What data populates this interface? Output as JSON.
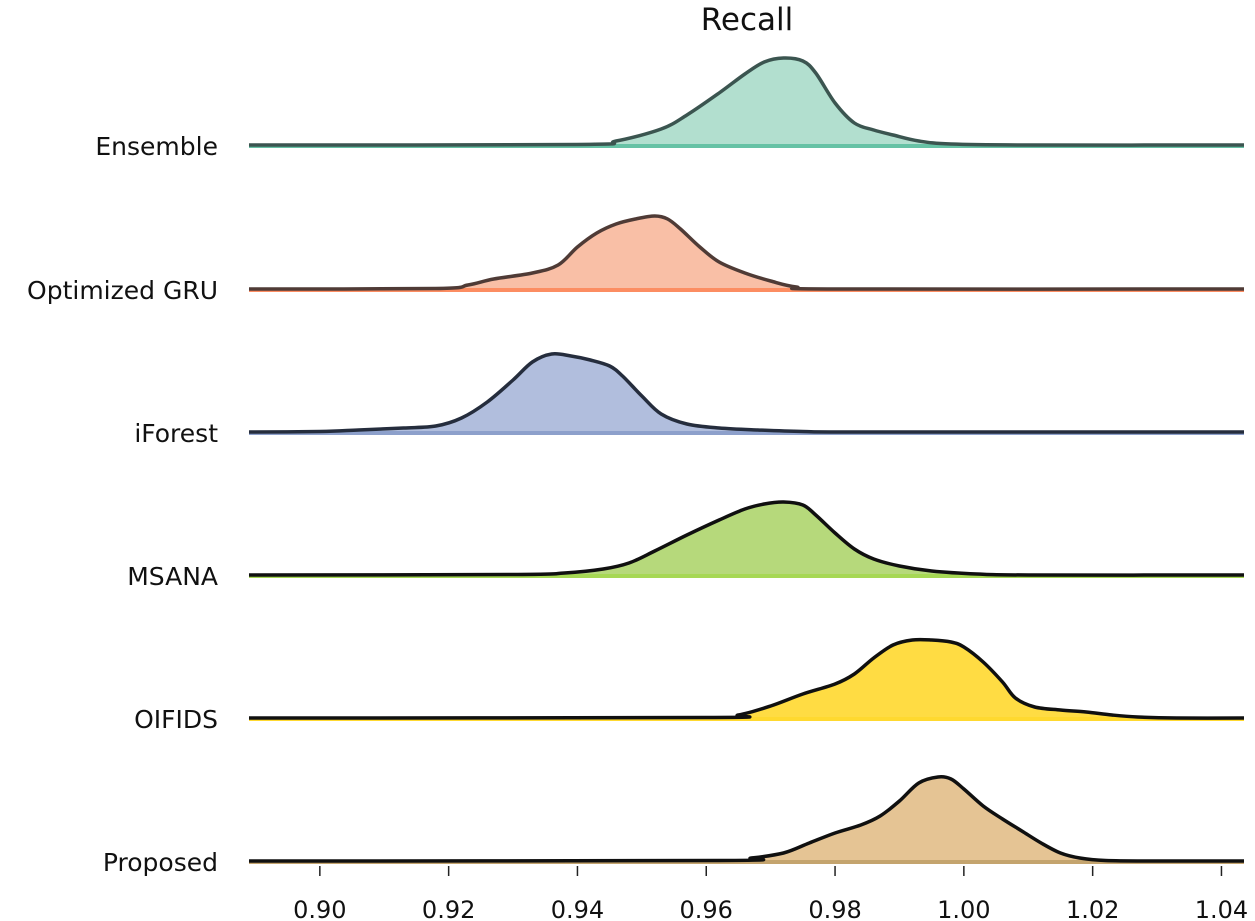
{
  "chart_data": {
    "type": "ridgeline",
    "title": "Recall",
    "xlabel": "",
    "ylabel": "",
    "xlim": [
      0.889,
      1.0435
    ],
    "x_ticks": [
      {
        "value": 0.9,
        "label": "0.90"
      },
      {
        "value": 0.92,
        "label": "0.92"
      },
      {
        "value": 0.94,
        "label": "0.94"
      },
      {
        "value": 0.96,
        "label": "0.96"
      },
      {
        "value": 0.98,
        "label": "0.98"
      },
      {
        "value": 1.0,
        "label": "1.00"
      },
      {
        "value": 1.02,
        "label": "1.02"
      },
      {
        "value": 1.04,
        "label": "1.04"
      }
    ],
    "grid": false,
    "series": [
      {
        "name": "Ensemble",
        "fill": "#b2dfcf",
        "base": "#66c2a5",
        "stroke": "#3b5550",
        "points": [
          [
            0.889,
            0
          ],
          [
            0.94,
            0.005
          ],
          [
            0.946,
            0.04
          ],
          [
            0.953,
            0.16
          ],
          [
            0.957,
            0.3
          ],
          [
            0.962,
            0.52
          ],
          [
            0.966,
            0.71
          ],
          [
            0.969,
            0.83
          ],
          [
            0.972,
            0.87
          ],
          [
            0.975,
            0.84
          ],
          [
            0.977,
            0.72
          ],
          [
            0.98,
            0.42
          ],
          [
            0.983,
            0.22
          ],
          [
            0.986,
            0.15
          ],
          [
            0.989,
            0.1
          ],
          [
            0.993,
            0.04
          ],
          [
            0.998,
            0.01
          ],
          [
            1.01,
            0
          ],
          [
            1.0435,
            0
          ]
        ]
      },
      {
        "name": "Optimized GRU",
        "fill": "#f9bfa6",
        "base": "#fc8d62",
        "stroke": "#4f3b36",
        "points": [
          [
            0.889,
            0
          ],
          [
            0.918,
            0.005
          ],
          [
            0.923,
            0.04
          ],
          [
            0.927,
            0.1
          ],
          [
            0.933,
            0.16
          ],
          [
            0.937,
            0.24
          ],
          [
            0.94,
            0.42
          ],
          [
            0.943,
            0.56
          ],
          [
            0.946,
            0.65
          ],
          [
            0.949,
            0.7
          ],
          [
            0.952,
            0.73
          ],
          [
            0.954,
            0.7
          ],
          [
            0.956,
            0.6
          ],
          [
            0.959,
            0.42
          ],
          [
            0.962,
            0.27
          ],
          [
            0.966,
            0.16
          ],
          [
            0.97,
            0.08
          ],
          [
            0.974,
            0.02
          ],
          [
            0.98,
            0
          ],
          [
            1.0435,
            0
          ]
        ]
      },
      {
        "name": "iForest",
        "fill": "#b1bedd",
        "base": "#8da0cb",
        "stroke": "#252d3d",
        "points": [
          [
            0.889,
            0
          ],
          [
            0.9,
            0.005
          ],
          [
            0.906,
            0.02
          ],
          [
            0.913,
            0.04
          ],
          [
            0.918,
            0.06
          ],
          [
            0.922,
            0.14
          ],
          [
            0.926,
            0.3
          ],
          [
            0.93,
            0.52
          ],
          [
            0.933,
            0.7
          ],
          [
            0.936,
            0.78
          ],
          [
            0.939,
            0.76
          ],
          [
            0.942,
            0.72
          ],
          [
            0.945,
            0.66
          ],
          [
            0.947,
            0.56
          ],
          [
            0.95,
            0.36
          ],
          [
            0.953,
            0.18
          ],
          [
            0.957,
            0.08
          ],
          [
            0.962,
            0.04
          ],
          [
            0.968,
            0.02
          ],
          [
            0.975,
            0.005
          ],
          [
            0.985,
            0
          ],
          [
            1.0435,
            0
          ]
        ]
      },
      {
        "name": "MSANA",
        "fill": "#b6d97b",
        "base": "#a6d854",
        "stroke": "#101010",
        "points": [
          [
            0.889,
            0
          ],
          [
            0.93,
            0.005
          ],
          [
            0.938,
            0.02
          ],
          [
            0.944,
            0.06
          ],
          [
            0.948,
            0.12
          ],
          [
            0.952,
            0.24
          ],
          [
            0.957,
            0.4
          ],
          [
            0.962,
            0.55
          ],
          [
            0.966,
            0.66
          ],
          [
            0.969,
            0.71
          ],
          [
            0.972,
            0.73
          ],
          [
            0.975,
            0.7
          ],
          [
            0.977,
            0.6
          ],
          [
            0.98,
            0.42
          ],
          [
            0.983,
            0.26
          ],
          [
            0.986,
            0.16
          ],
          [
            0.99,
            0.09
          ],
          [
            0.995,
            0.04
          ],
          [
            1.002,
            0.01
          ],
          [
            1.01,
            0
          ],
          [
            1.0435,
            0
          ]
        ]
      },
      {
        "name": "OIFIDS",
        "fill": "#ffdc43",
        "base": "#ffd92f",
        "stroke": "#101010",
        "points": [
          [
            0.889,
            0
          ],
          [
            0.96,
            0.005
          ],
          [
            0.965,
            0.03
          ],
          [
            0.97,
            0.12
          ],
          [
            0.975,
            0.24
          ],
          [
            0.98,
            0.34
          ],
          [
            0.983,
            0.44
          ],
          [
            0.986,
            0.6
          ],
          [
            0.989,
            0.73
          ],
          [
            0.992,
            0.78
          ],
          [
            0.995,
            0.78
          ],
          [
            0.998,
            0.76
          ],
          [
            1.0,
            0.71
          ],
          [
            1.003,
            0.56
          ],
          [
            1.006,
            0.36
          ],
          [
            1.008,
            0.2
          ],
          [
            1.011,
            0.11
          ],
          [
            1.015,
            0.08
          ],
          [
            1.019,
            0.06
          ],
          [
            1.023,
            0.03
          ],
          [
            1.027,
            0.01
          ],
          [
            1.033,
            0
          ],
          [
            1.0435,
            0
          ]
        ]
      },
      {
        "name": "Proposed",
        "fill": "#e5c494",
        "base": "#c4a46e",
        "stroke": "#101010",
        "points": [
          [
            0.889,
            0
          ],
          [
            0.962,
            0.005
          ],
          [
            0.967,
            0.03
          ],
          [
            0.972,
            0.08
          ],
          [
            0.976,
            0.18
          ],
          [
            0.98,
            0.28
          ],
          [
            0.984,
            0.36
          ],
          [
            0.987,
            0.45
          ],
          [
            0.99,
            0.6
          ],
          [
            0.993,
            0.78
          ],
          [
            0.996,
            0.84
          ],
          [
            0.998,
            0.82
          ],
          [
            1.0,
            0.72
          ],
          [
            1.003,
            0.55
          ],
          [
            1.006,
            0.42
          ],
          [
            1.009,
            0.3
          ],
          [
            1.012,
            0.18
          ],
          [
            1.015,
            0.08
          ],
          [
            1.018,
            0.03
          ],
          [
            1.022,
            0.005
          ],
          [
            1.03,
            0
          ],
          [
            1.0435,
            0
          ]
        ]
      }
    ]
  }
}
